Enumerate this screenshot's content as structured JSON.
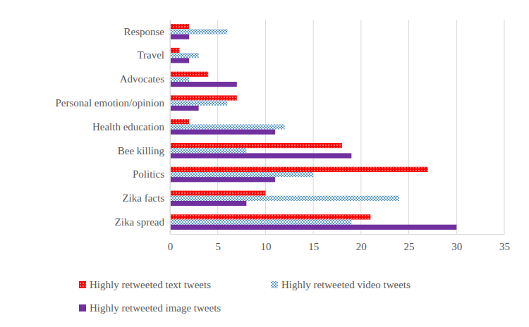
{
  "chart_data": {
    "type": "bar",
    "orientation": "horizontal",
    "categories": [
      "Response",
      "Travel",
      "Advocates",
      "Personal emotion/opinion",
      "Health education",
      "Bee killing",
      "Politics",
      "Zika facts",
      "Zika spread"
    ],
    "series": [
      {
        "name": "Highly retweeted text tweets",
        "color": "#ff0000",
        "values": [
          2,
          1,
          4,
          7,
          2,
          18,
          27,
          10,
          21
        ]
      },
      {
        "name": "Highly retweeted video tweets",
        "color": "#5b9bd5",
        "values": [
          6,
          3,
          2,
          6,
          12,
          8,
          15,
          24,
          19
        ]
      },
      {
        "name": "Highly retweeted image tweets",
        "color": "#7030a0",
        "values": [
          2,
          2,
          7,
          3,
          11,
          19,
          11,
          8,
          30
        ]
      }
    ],
    "xlim": [
      0,
      35
    ],
    "xticks": [
      0,
      5,
      10,
      15,
      20,
      25,
      30,
      35
    ],
    "grid": true,
    "legend": "bottom"
  }
}
